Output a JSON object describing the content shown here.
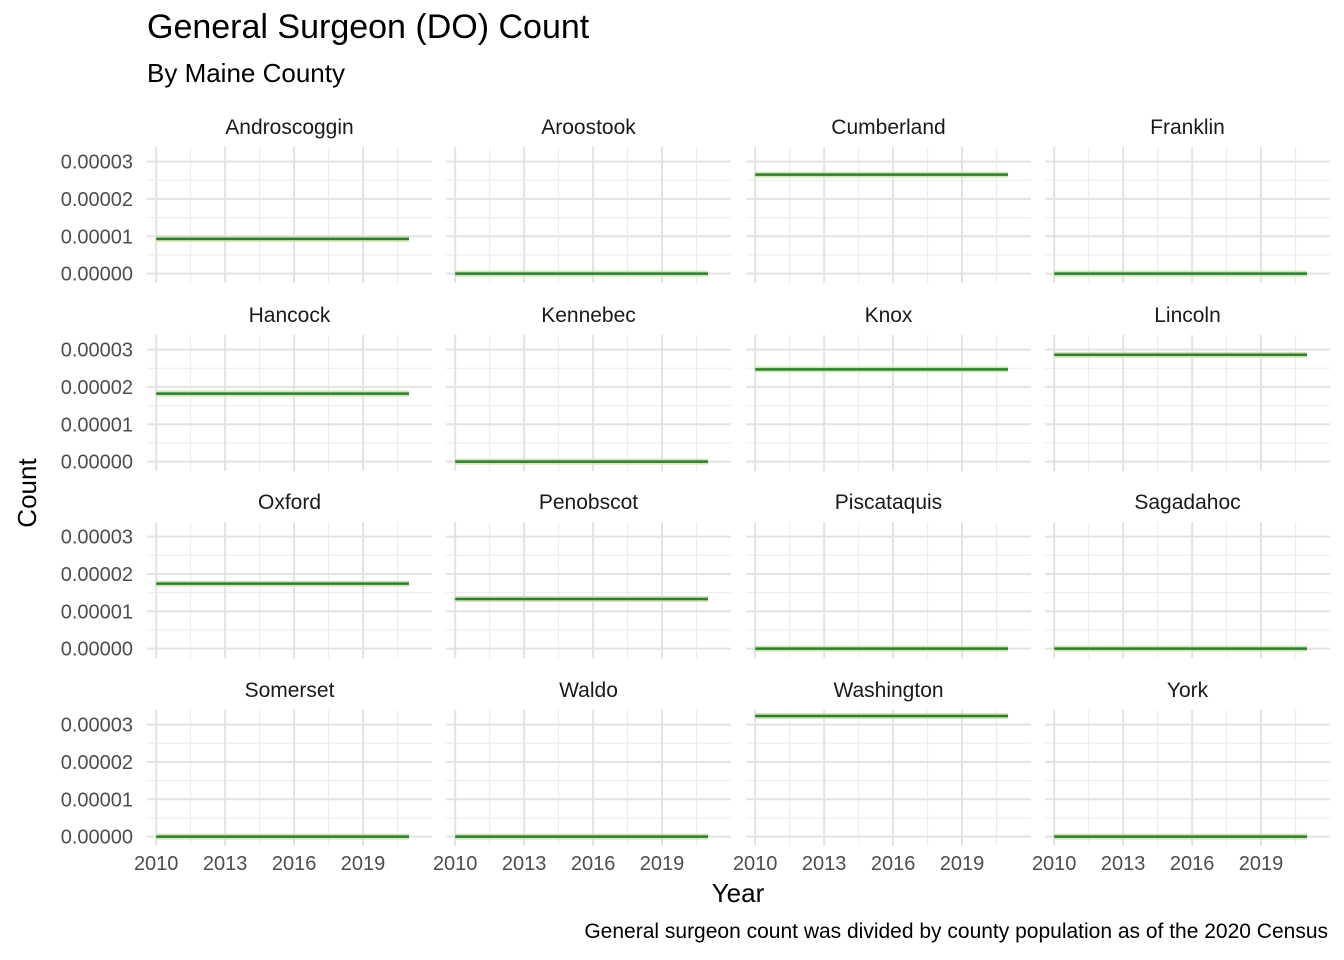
{
  "chart_data": {
    "type": "line",
    "title": "General Surgeon (DO) Count",
    "subtitle": "By Maine County",
    "xlabel": "Year",
    "ylabel": "Count",
    "caption": "General surgeon count was divided by county population as of the 2020 Census",
    "x_ticks": [
      "2010",
      "2013",
      "2016",
      "2019"
    ],
    "y_ticks": [
      "0.00000",
      "0.00001",
      "0.00002",
      "0.00003"
    ],
    "xlim": [
      2009.6,
      2022.0
    ],
    "ylim": [
      -2.5e-06,
      3.39e-05
    ],
    "x_range": [
      2010,
      2021
    ],
    "line_color": "#2e7d32",
    "band_color": "#c5e1a5",
    "grid": true,
    "panels": [
      {
        "name": "Androscoggin",
        "value": 9.3e-06
      },
      {
        "name": "Aroostook",
        "value": 0.0
      },
      {
        "name": "Cumberland",
        "value": 2.65e-05
      },
      {
        "name": "Franklin",
        "value": 0.0
      },
      {
        "name": "Hancock",
        "value": 1.82e-05
      },
      {
        "name": "Kennebec",
        "value": 0.0
      },
      {
        "name": "Knox",
        "value": 2.47e-05
      },
      {
        "name": "Lincoln",
        "value": 2.86e-05
      },
      {
        "name": "Oxford",
        "value": 1.74e-05
      },
      {
        "name": "Penobscot",
        "value": 1.33e-05
      },
      {
        "name": "Piscataquis",
        "value": 0.0
      },
      {
        "name": "Sagadahoc",
        "value": 0.0
      },
      {
        "name": "Somerset",
        "value": 0.0
      },
      {
        "name": "Waldo",
        "value": 0.0
      },
      {
        "name": "Washington",
        "value": 3.23e-05
      },
      {
        "name": "York",
        "value": 0.0
      }
    ]
  }
}
